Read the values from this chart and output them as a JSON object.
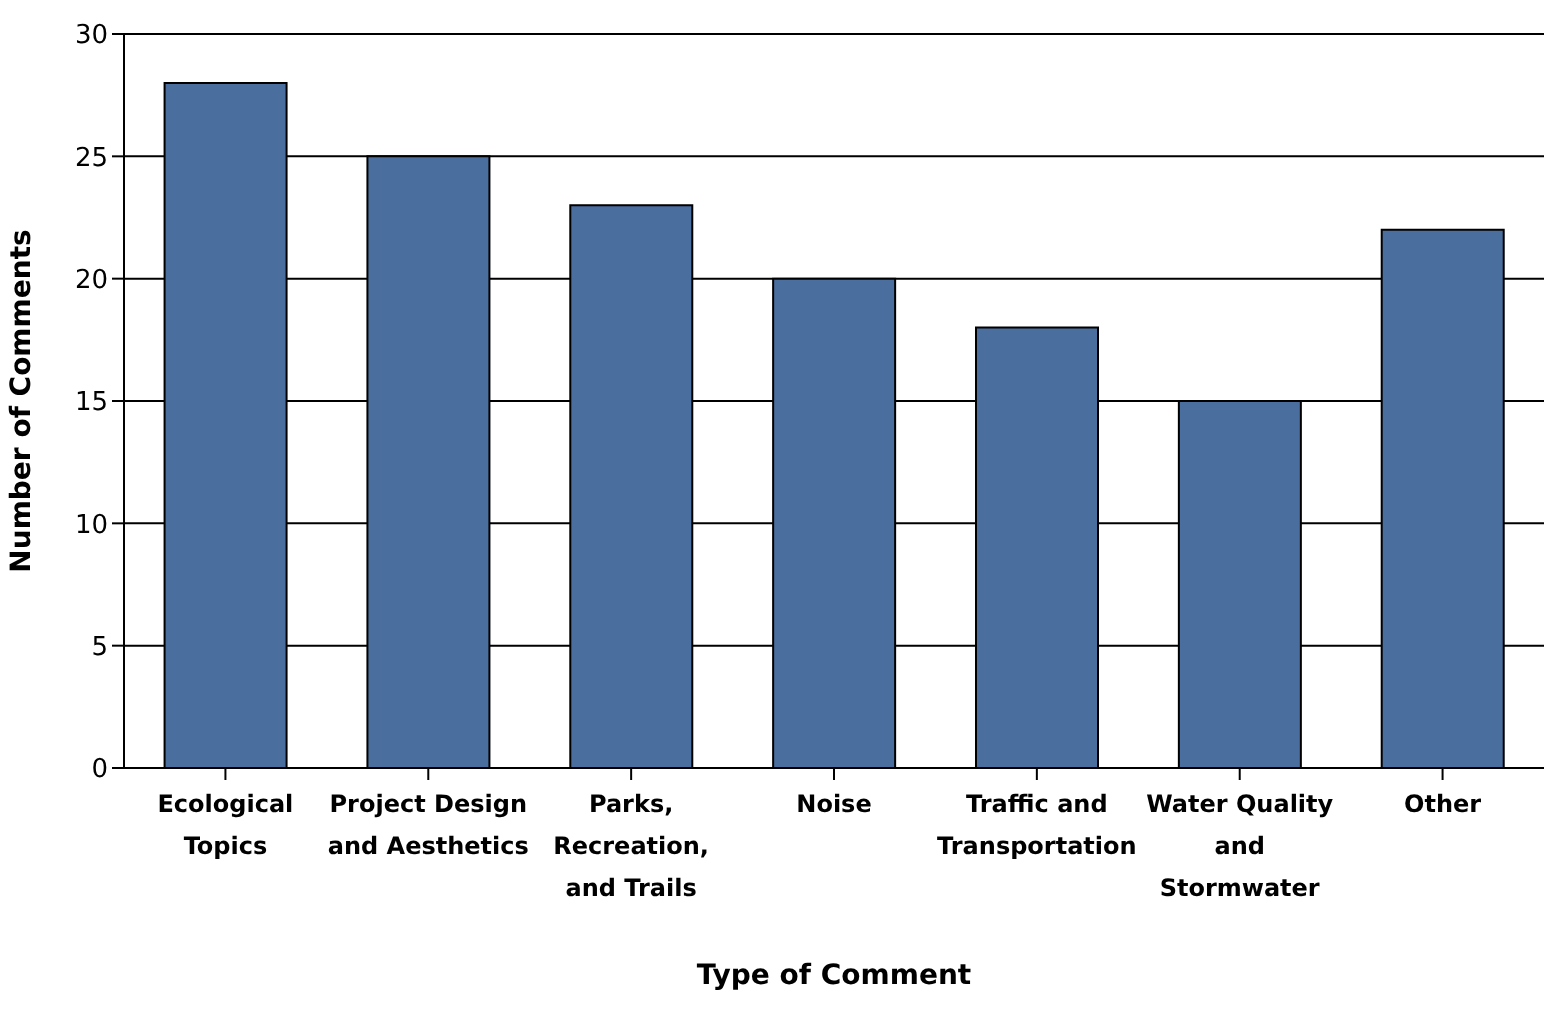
{
  "chart_data": {
    "type": "bar",
    "xlabel": "Type of Comment",
    "ylabel": "Number of Comments",
    "categories": [
      "Ecological\nTopics",
      "Project Design\nand Aesthetics",
      "Parks,\nRecreation,\nand Trails",
      "Noise",
      "Traffic and\nTransportation",
      "Water Quality\nand\nStormwater",
      "Other"
    ],
    "values": [
      28,
      25,
      23,
      20,
      18,
      15,
      22
    ],
    "color": "#4a6e9e",
    "ylim": [
      0,
      30
    ],
    "yticks": [
      0,
      5,
      10,
      15,
      20,
      25,
      30
    ],
    "grid": "y"
  }
}
